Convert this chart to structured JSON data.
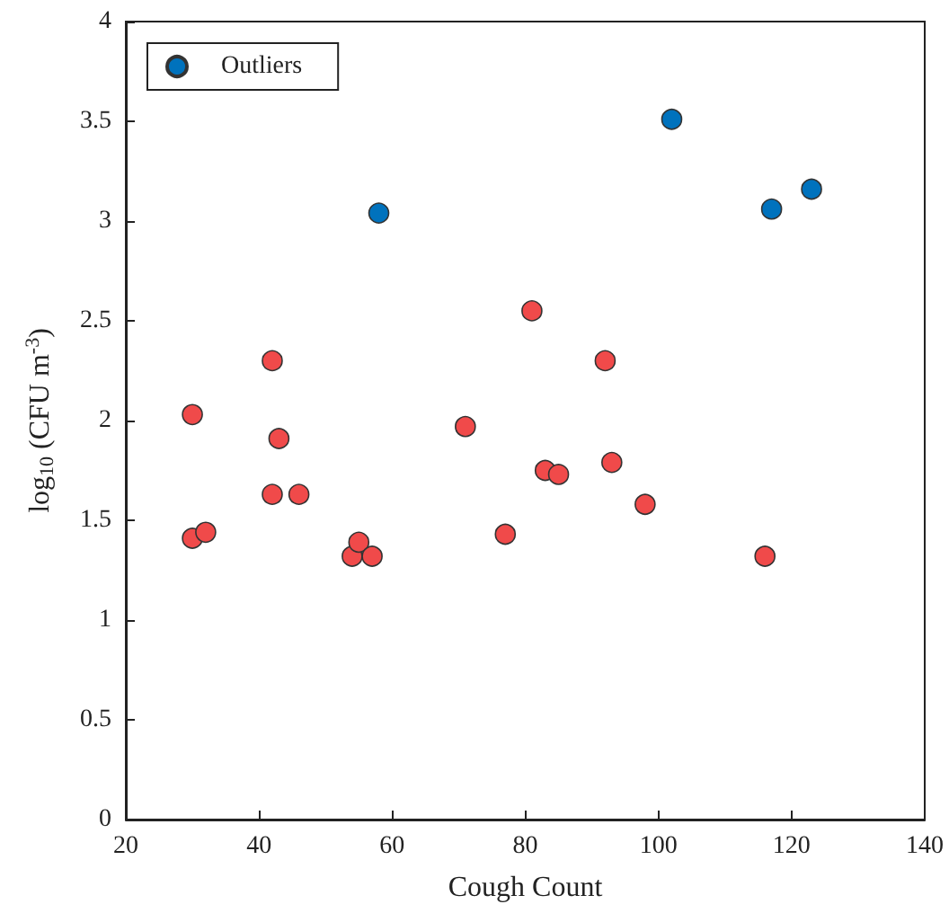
{
  "chart_data": {
    "type": "scatter",
    "xlabel": "Cough Count",
    "ylabel": "log$_{10}$ (CFU m$^{-3}$)",
    "xlim": [
      20,
      140
    ],
    "xticks": [
      20,
      40,
      60,
      80,
      100,
      120,
      140
    ],
    "ylim": [
      0,
      4
    ],
    "yticks": [
      0,
      0.5,
      1,
      1.5,
      2,
      2.5,
      3,
      3.5,
      4
    ],
    "legend": "top left",
    "marker": "circle",
    "series": [
      {
        "color": "#f04a4a",
        "x": [
          30,
          30,
          32,
          42,
          43,
          42,
          46,
          54,
          55,
          57,
          71,
          77,
          81,
          83,
          85,
          92,
          93,
          98,
          116
        ],
        "values": [
          2.03,
          1.41,
          1.44,
          2.3,
          1.91,
          1.63,
          1.63,
          1.32,
          1.39,
          1.32,
          1.97,
          1.43,
          2.55,
          1.75,
          1.73,
          2.3,
          1.79,
          1.58,
          1.32
        ]
      },
      {
        "name": "Outliers",
        "color": "#0072bd",
        "x": [
          58,
          102,
          117,
          123
        ],
        "values": [
          3.04,
          3.51,
          3.06,
          3.16
        ]
      }
    ]
  }
}
